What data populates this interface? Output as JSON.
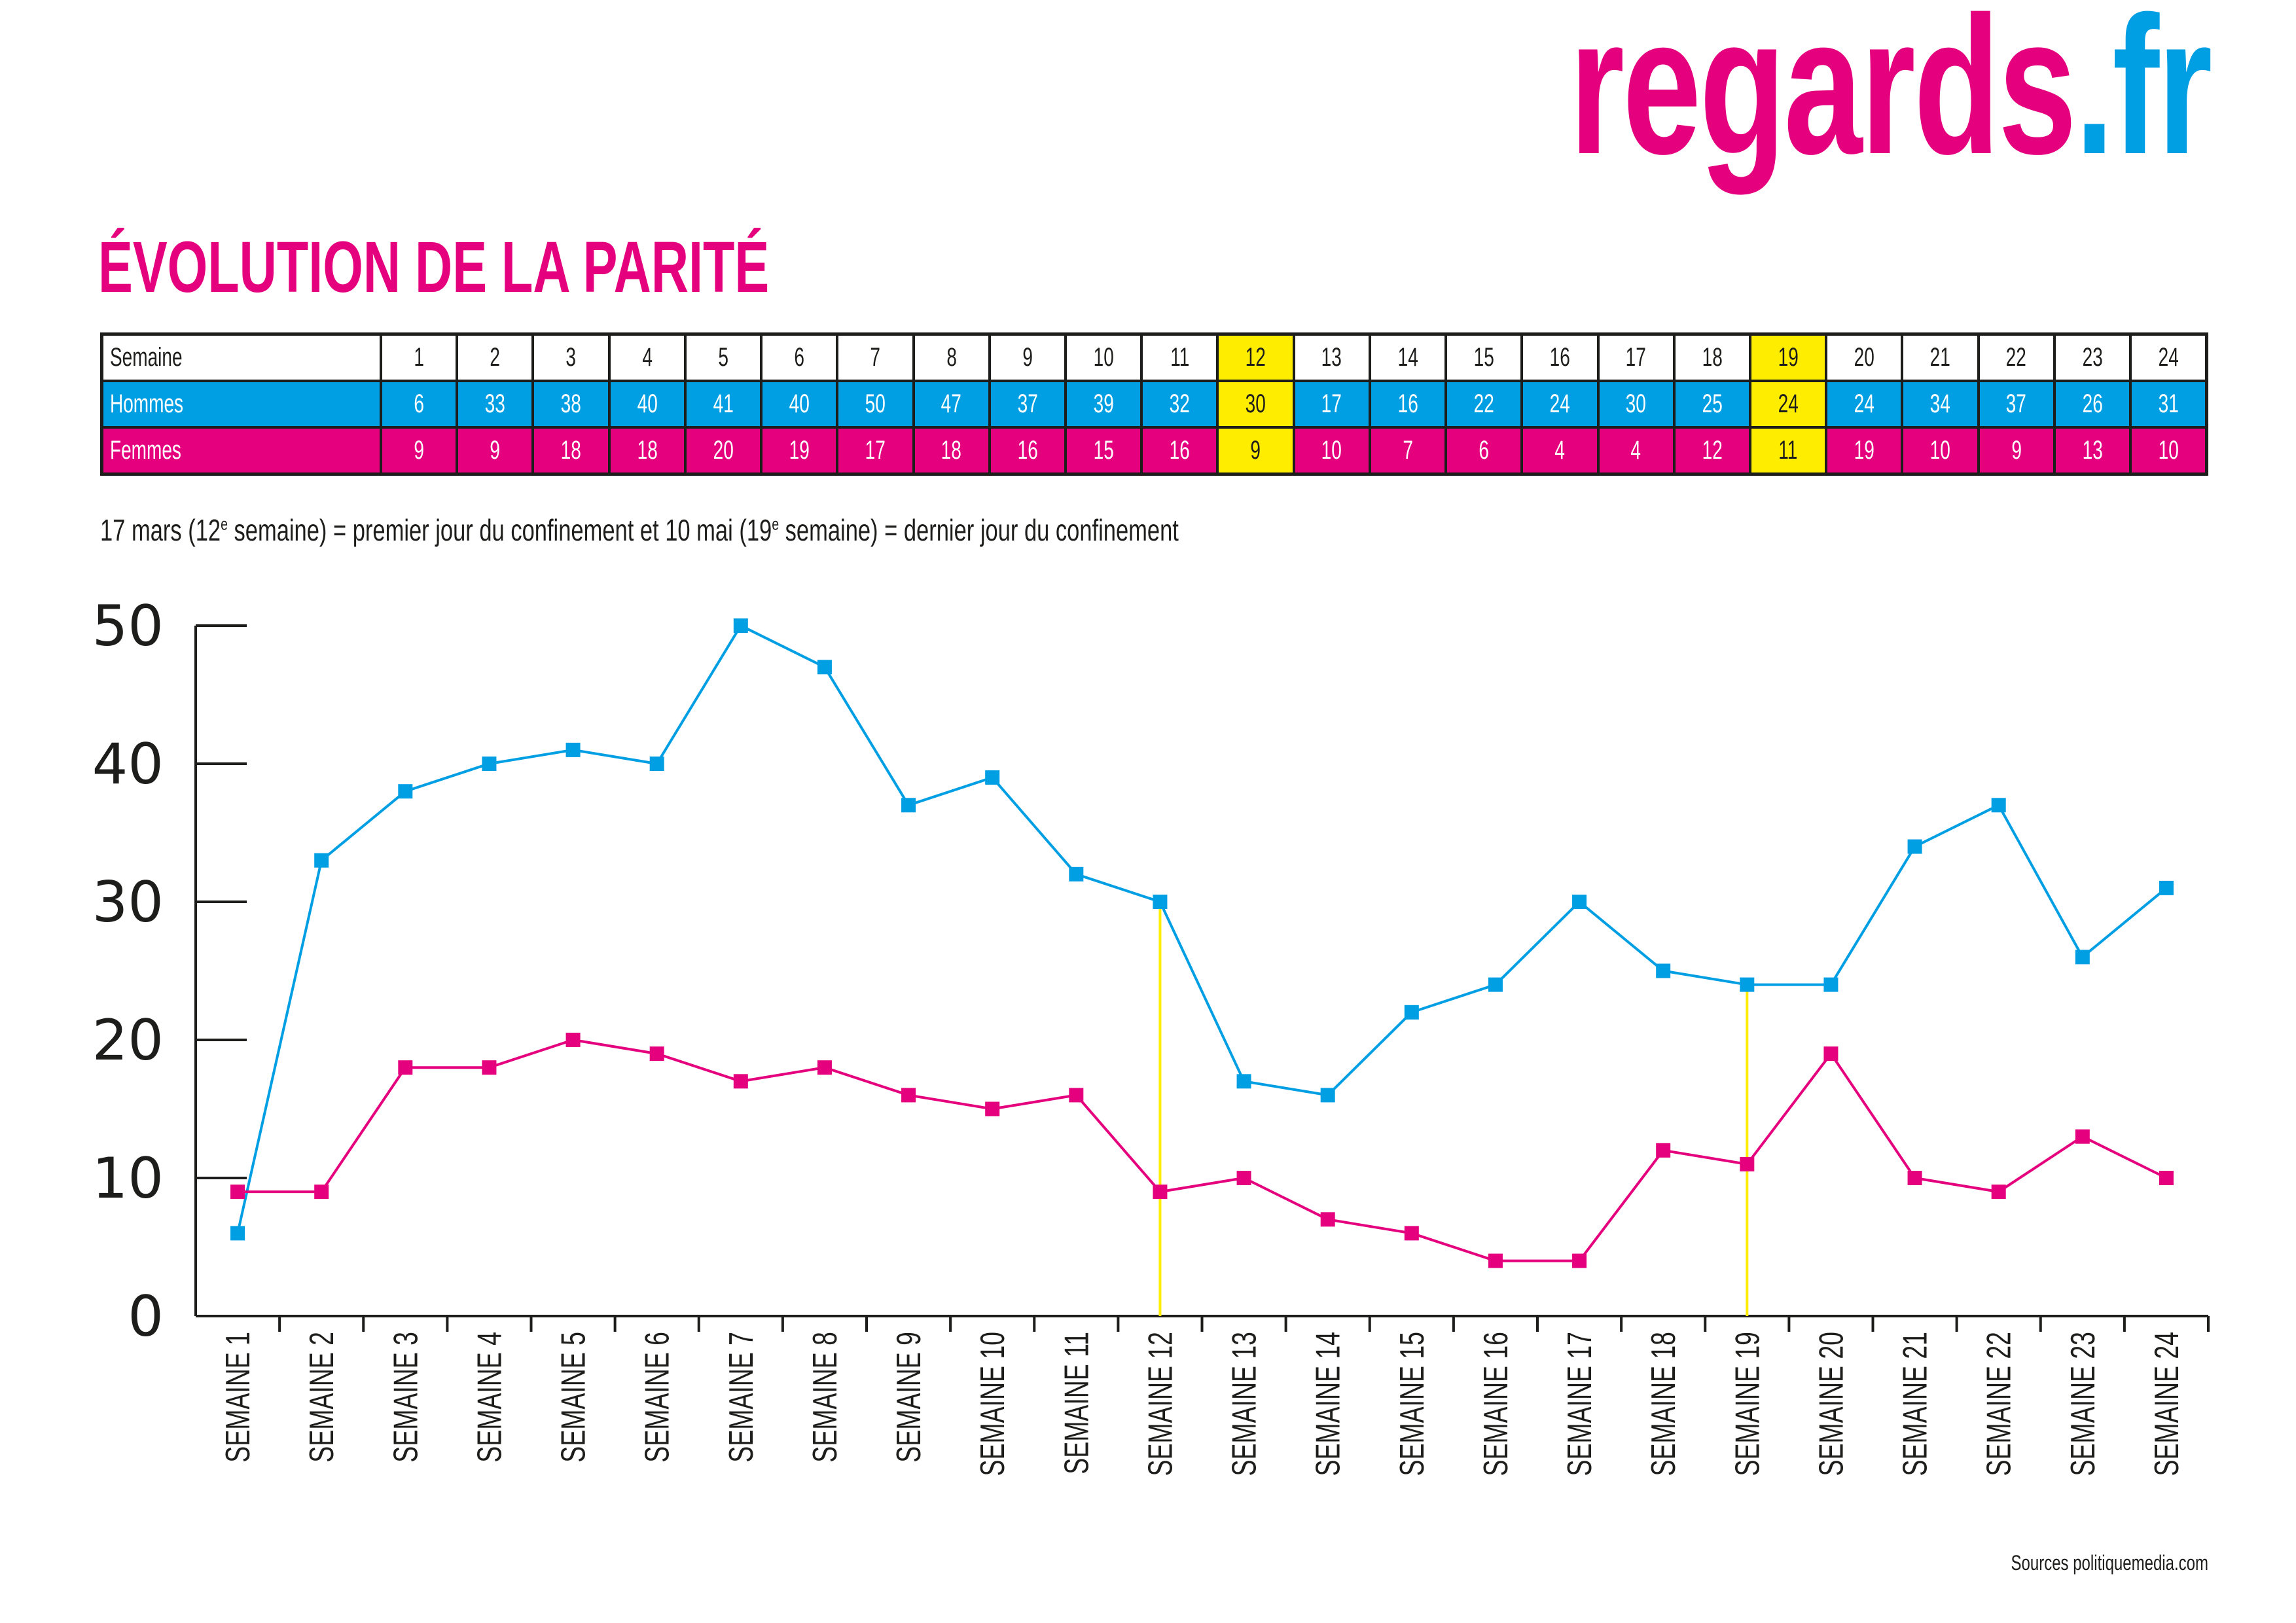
{
  "logo": {
    "main": "regards",
    "suffix": ".fr"
  },
  "title": "ÉVOLUTION DE LA PARITÉ",
  "table": {
    "row_labels": [
      "Semaine",
      "Hommes",
      "Femmes"
    ],
    "highlight_weeks": [
      12,
      19
    ]
  },
  "note": {
    "pre": "17 mars (12",
    "sup1": "e",
    "mid": " semaine) = premier jour du confinement et 10 mai (19",
    "sup2": "e",
    "post": " semaine) = dernier jour du confinement"
  },
  "source": "Sources politiquemedia.com",
  "colors": {
    "hommes": "#009fe3",
    "femmes": "#e5007e",
    "highlight": "#ffed00"
  },
  "chart_data": {
    "type": "line",
    "x": [
      1,
      2,
      3,
      4,
      5,
      6,
      7,
      8,
      9,
      10,
      11,
      12,
      13,
      14,
      15,
      16,
      17,
      18,
      19,
      20,
      21,
      22,
      23,
      24
    ],
    "categories": [
      "SEMAINE 1",
      "SEMAINE 2",
      "SEMAINE 3",
      "SEMAINE 4",
      "SEMAINE 5",
      "SEMAINE 6",
      "SEMAINE 7",
      "SEMAINE 8",
      "SEMAINE 9",
      "SEMAINE 10",
      "SEMAINE 11",
      "SEMAINE 12",
      "SEMAINE 13",
      "SEMAINE 14",
      "SEMAINE 15",
      "SEMAINE 16",
      "SEMAINE 17",
      "SEMAINE 18",
      "SEMAINE 19",
      "SEMAINE 20",
      "SEMAINE 21",
      "SEMAINE 22",
      "SEMAINE 23",
      "SEMAINE 24"
    ],
    "series": [
      {
        "name": "Hommes",
        "color": "#009fe3",
        "values": [
          6,
          33,
          38,
          40,
          41,
          40,
          50,
          47,
          37,
          39,
          32,
          30,
          17,
          16,
          22,
          24,
          30,
          25,
          24,
          24,
          34,
          37,
          26,
          31
        ]
      },
      {
        "name": "Femmes",
        "color": "#e5007e",
        "values": [
          9,
          9,
          18,
          18,
          20,
          19,
          17,
          18,
          16,
          15,
          16,
          9,
          10,
          7,
          6,
          4,
          4,
          12,
          11,
          19,
          10,
          9,
          13,
          10
        ]
      }
    ],
    "ylim": [
      0,
      50
    ],
    "yticks": [
      0,
      10,
      20,
      30,
      40,
      50
    ],
    "markers": "square",
    "vertical_markers": {
      "weeks": [
        12,
        19
      ],
      "color": "#ffed00"
    },
    "grid": false
  }
}
